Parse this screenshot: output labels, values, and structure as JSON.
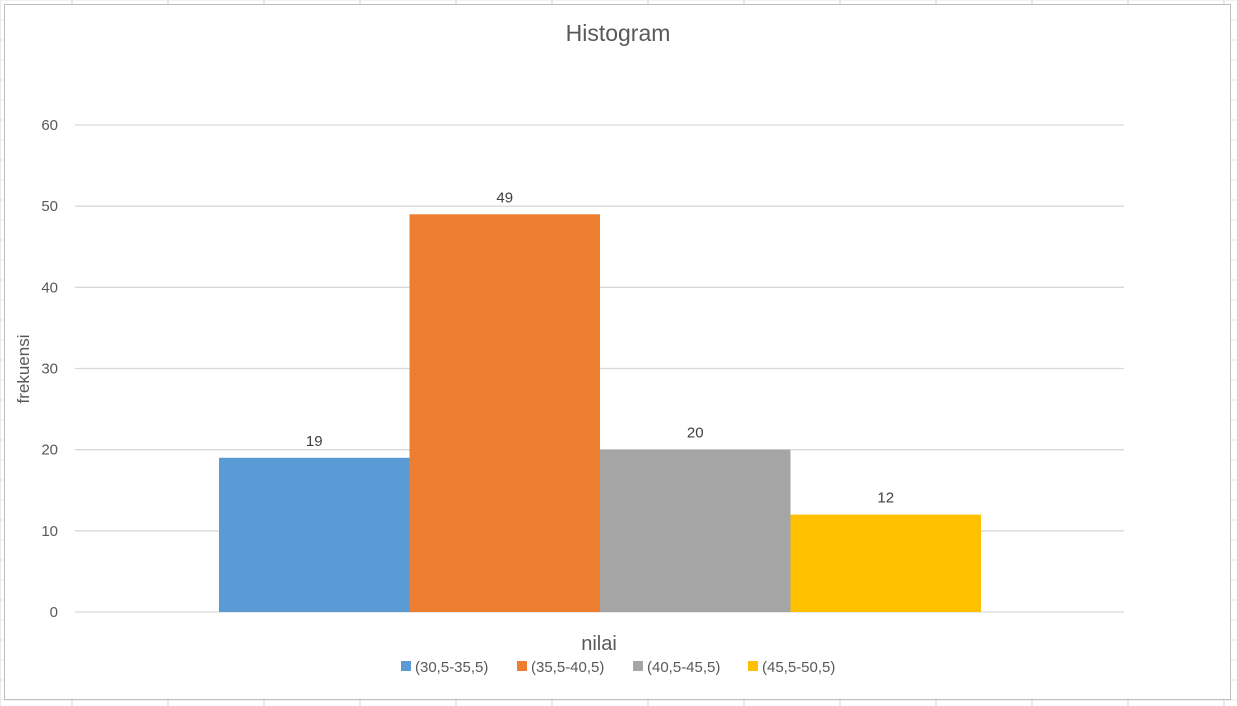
{
  "chart_data": {
    "type": "bar",
    "title": "Histogram",
    "xlabel": "nilai",
    "ylabel": "frekuensi",
    "ylim": [
      0,
      60
    ],
    "yticks": [
      0,
      10,
      20,
      30,
      40,
      50,
      60
    ],
    "grid": true,
    "legend_position": "bottom",
    "series": [
      {
        "name": "(30,5-35,5)",
        "value": 19,
        "color": "#5B9BD5"
      },
      {
        "name": "(35,5-40,5)",
        "value": 49,
        "color": "#ED7D31"
      },
      {
        "name": "(40,5-45,5)",
        "value": 20,
        "color": "#A5A5A5"
      },
      {
        "name": "(45,5-50,5)",
        "value": 12,
        "color": "#FFC000"
      }
    ]
  }
}
